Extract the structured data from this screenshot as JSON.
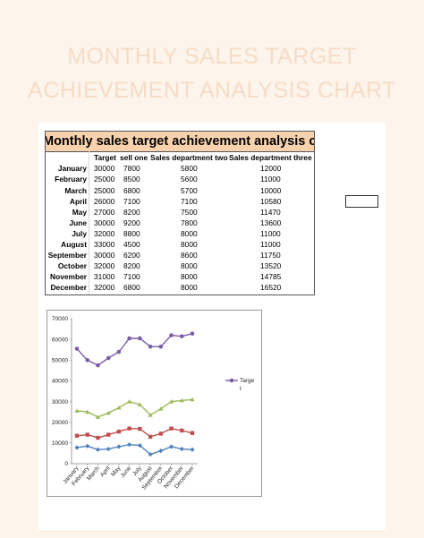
{
  "header": {
    "title_line1": "MONTHLY SALES TARGET",
    "title_line2": "ACHIEVEMENT ANALYSIS CHART"
  },
  "table": {
    "title": "Monthly sales target achievement analysis chart",
    "columns": [
      "Target",
      "sell one",
      "Sales department two",
      "Sales department three"
    ],
    "rows": [
      {
        "month": "January",
        "target": "30000",
        "one": "7800",
        "two": "5800",
        "three": "12000"
      },
      {
        "month": "February",
        "target": "25000",
        "one": "8500",
        "two": "5600",
        "three": "11000"
      },
      {
        "month": "March",
        "target": "25000",
        "one": "6800",
        "two": "5700",
        "three": "10000"
      },
      {
        "month": "April",
        "target": "26000",
        "one": "7100",
        "two": "7100",
        "three": "10580"
      },
      {
        "month": "May",
        "target": "27000",
        "one": "8200",
        "two": "7500",
        "three": "11470"
      },
      {
        "month": "June",
        "target": "30000",
        "one": "9200",
        "two": "7800",
        "three": "13600"
      },
      {
        "month": "July",
        "target": "32000",
        "one": "8800",
        "two": "8000",
        "three": "11000"
      },
      {
        "month": "August",
        "target": "33000",
        "one": "4500",
        "two": "8000",
        "three": "11000"
      },
      {
        "month": "September",
        "target": "30000",
        "one": "6200",
        "two": "8600",
        "three": "11750"
      },
      {
        "month": "October",
        "target": "32000",
        "one": "8200",
        "two": "8000",
        "three": "13520"
      },
      {
        "month": "November",
        "target": "31000",
        "one": "7100",
        "two": "8000",
        "three": "14785"
      },
      {
        "month": "December",
        "target": "32000",
        "one": "6800",
        "two": "8000",
        "three": "16520"
      }
    ]
  },
  "chart_data": {
    "type": "line",
    "categories": [
      "January",
      "February",
      "March",
      "April",
      "May",
      "June",
      "July",
      "August",
      "September",
      "October",
      "November",
      "December"
    ],
    "ylim": [
      0,
      70000
    ],
    "yticks": [
      "0",
      "10000",
      "20000",
      "30000",
      "40000",
      "50000",
      "60000",
      "70000"
    ],
    "legend_position": "right",
    "series": [
      {
        "name": "Target",
        "color": "#7b5ea7",
        "marker": "circle",
        "values": [
          55500,
          50000,
          47500,
          51000,
          54000,
          60500,
          60500,
          56500,
          56500,
          62000,
          61500,
          62800
        ]
      },
      {
        "color": "#9bbb59",
        "marker": "triangle",
        "values": [
          25500,
          25000,
          22500,
          24500,
          27000,
          30000,
          28500,
          23500,
          26500,
          30000,
          30500,
          31000
        ]
      },
      {
        "color": "#c0504d",
        "marker": "square",
        "values": [
          13500,
          14000,
          12500,
          14000,
          15500,
          17000,
          16800,
          13000,
          14500,
          17000,
          16000,
          14800
        ]
      },
      {
        "color": "#4f81bd",
        "marker": "diamond",
        "values": [
          7800,
          8500,
          6800,
          7100,
          8200,
          9200,
          8800,
          4500,
          6200,
          8200,
          7100,
          6800
        ]
      }
    ],
    "legend_label": "Target"
  }
}
